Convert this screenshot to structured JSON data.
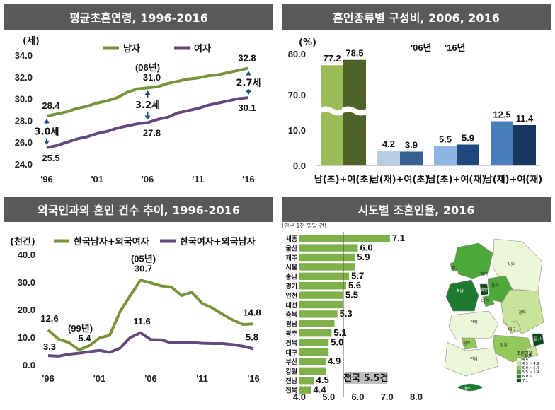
{
  "colors": {
    "male": "#77933c",
    "female": "#604a7b",
    "gap": "#1f4e79",
    "header": "#595959"
  },
  "panels": {
    "p1": {
      "title": "평균초혼연령, 1996-2016"
    },
    "p2": {
      "title": "혼인종류별 구성비, 2006, 2016"
    },
    "p3": {
      "title": "외국인과의 혼인 건수 추이, 1996-2016"
    },
    "p4": {
      "title": "시도별 조혼인율, 2016"
    }
  },
  "chart_data": [
    {
      "id": "age",
      "type": "line",
      "title": "평균초혼연령, 1996-2016",
      "ylabel": "(세)",
      "ylim": [
        24,
        34
      ],
      "yticks": [
        "24.0",
        "26.0",
        "28.0",
        "30.0",
        "32.0",
        "34.0"
      ],
      "xticks": [
        "'96",
        "'01",
        "'06",
        "'11",
        "'16"
      ],
      "x": [
        1996,
        1997,
        1998,
        1999,
        2000,
        2001,
        2002,
        2003,
        2004,
        2005,
        2006,
        2007,
        2008,
        2009,
        2010,
        2011,
        2012,
        2013,
        2014,
        2015,
        2016
      ],
      "series": [
        {
          "name": "남자",
          "color": "#77933c",
          "values": [
            28.4,
            28.6,
            28.8,
            29.1,
            29.3,
            29.6,
            29.8,
            30.1,
            30.6,
            30.9,
            31.0,
            31.1,
            31.4,
            31.6,
            31.8,
            31.9,
            32.1,
            32.2,
            32.4,
            32.6,
            32.8
          ]
        },
        {
          "name": "여자",
          "color": "#604a7b",
          "values": [
            25.5,
            25.7,
            26.0,
            26.3,
            26.5,
            26.8,
            27.0,
            27.3,
            27.5,
            27.7,
            27.8,
            28.1,
            28.3,
            28.7,
            28.9,
            29.1,
            29.4,
            29.6,
            29.8,
            30.0,
            30.1
          ]
        }
      ],
      "labels": [
        {
          "x": 1996,
          "y": 28.4,
          "text": "28.4"
        },
        {
          "x": 1996,
          "y": 25.5,
          "text": "25.5"
        },
        {
          "x": 2006,
          "y": 31.0,
          "text": "31.0"
        },
        {
          "x": 2006,
          "y": 27.8,
          "text": "27.8"
        },
        {
          "x": 2016,
          "y": 32.8,
          "text": "32.8"
        },
        {
          "x": 2016,
          "y": 30.1,
          "text": "30.1"
        }
      ],
      "gaps": [
        {
          "x": 1996,
          "text": "3.0세"
        },
        {
          "x": 2006,
          "text": "3.2세"
        },
        {
          "x": 2016,
          "text": "2.7세"
        }
      ],
      "annotation": "(06년)"
    },
    {
      "id": "types",
      "type": "bar",
      "title": "혼인종류별 구성비, 2006, 2016",
      "ylabel": "(%)",
      "yticks": [
        "0.0",
        "10.0",
        "70.0",
        "80.0"
      ],
      "categories": [
        "남(초)+여(초)",
        "남(재)+여(초)",
        "남(초)+여(재)",
        "남(재)+여(재)"
      ],
      "series": [
        {
          "name": "'06년",
          "values": [
            77.2,
            4.2,
            5.5,
            12.5
          ],
          "colors": [
            "#9bbb59",
            "#b8cce4",
            "#8eb4e3",
            "#4a7ebb"
          ]
        },
        {
          "name": "'16년",
          "values": [
            78.5,
            3.9,
            5.9,
            11.4
          ],
          "colors": [
            "#4f6228",
            "#376092",
            "#1f497d",
            "#17375e"
          ]
        }
      ]
    },
    {
      "id": "foreign",
      "type": "line",
      "title": "외국인과의 혼인 건수 추이, 1996-2016",
      "ylabel": "(천건)",
      "ylim": [
        0,
        40
      ],
      "yticks": [
        "0.0",
        "10.0",
        "20.0",
        "30.0",
        "40.0"
      ],
      "xticks": [
        "'96",
        "'01",
        "'06",
        "'11",
        "'16"
      ],
      "x": [
        1996,
        1997,
        1998,
        1999,
        2000,
        2001,
        2002,
        2003,
        2004,
        2005,
        2006,
        2007,
        2008,
        2009,
        2010,
        2011,
        2012,
        2013,
        2014,
        2015,
        2016
      ],
      "series": [
        {
          "name": "한국남자+외국여자",
          "color": "#77933c",
          "values": [
            12.6,
            9.3,
            8.1,
            5.4,
            6.9,
            9.7,
            10.7,
            19.2,
            25.1,
            30.7,
            29.7,
            28.6,
            28.2,
            25.1,
            26.3,
            22.3,
            20.6,
            18.3,
            16.2,
            14.6,
            14.8
          ]
        },
        {
          "name": "한국여자+외국남자",
          "color": "#604a7b",
          "values": [
            3.3,
            3.1,
            3.8,
            4.2,
            4.7,
            5.2,
            4.5,
            6.0,
            9.9,
            11.6,
            9.1,
            9.0,
            8.0,
            8.1,
            8.1,
            7.8,
            7.7,
            7.7,
            7.3,
            6.7,
            5.8
          ]
        }
      ],
      "labels": [
        {
          "x": 1996,
          "y": 12.6,
          "text": "12.6"
        },
        {
          "x": 1996,
          "y": 3.3,
          "text": "3.3"
        },
        {
          "x": 1999,
          "y": 5.4,
          "text": "5.4"
        },
        {
          "x": 2005,
          "y": 30.7,
          "text": "30.7"
        },
        {
          "x": 2005,
          "y": 11.6,
          "text": "11.6"
        },
        {
          "x": 2016,
          "y": 14.8,
          "text": "14.8"
        },
        {
          "x": 2016,
          "y": 5.8,
          "text": "5.8"
        }
      ],
      "annotations": [
        "(99년)",
        "(05년)"
      ]
    },
    {
      "id": "regions",
      "type": "bar",
      "title": "시도별 조혼인율, 2016",
      "ylabel": "(인구 1천 명당 건)",
      "xlim": [
        4.0,
        8.0
      ],
      "xticks": [
        "4.0",
        "5.0",
        "6.0",
        "7.0",
        "8.0"
      ],
      "categories": [
        "세종",
        "울산",
        "제주",
        "서울",
        "충남",
        "경기",
        "인천",
        "대전",
        "충북",
        "경남",
        "광주",
        "경북",
        "대구",
        "부산",
        "강원",
        "전남",
        "전북"
      ],
      "values": [
        7.1,
        6.0,
        5.9,
        5.9,
        5.7,
        5.6,
        5.5,
        5.5,
        5.3,
        5.2,
        5.1,
        5.0,
        5.0,
        4.9,
        4.9,
        4.5,
        4.4
      ],
      "value_labels": [
        "7.1",
        "6.0",
        "5.9",
        "",
        "5.7",
        "5.6",
        "5.5",
        "",
        "5.3",
        "",
        "5.1",
        "5.0",
        "",
        "4.9",
        "",
        "4.5",
        "4.4"
      ],
      "national_avg": 5.5,
      "national_label": "전국 5.5건"
    }
  ],
  "map": {
    "regions": [
      "인천",
      "서울",
      "경기",
      "강원",
      "충남",
      "세종",
      "충북",
      "대전",
      "경북",
      "대구",
      "울산",
      "전북",
      "경남",
      "부산",
      "광주",
      "전남",
      "제주"
    ],
    "legend_title": "조혼인율",
    "legend_items": [
      "4.4",
      "4.5 ~ 4.9",
      "5.0 ~ 5.4",
      "5.5 ~ 5.9",
      "6.0 ~",
      "7.1"
    ],
    "legend_colors": [
      "#edf6d8",
      "#c8e49a",
      "#92c95a",
      "#4fa83a",
      "#1e7a2e",
      "#0a4a1c"
    ]
  }
}
